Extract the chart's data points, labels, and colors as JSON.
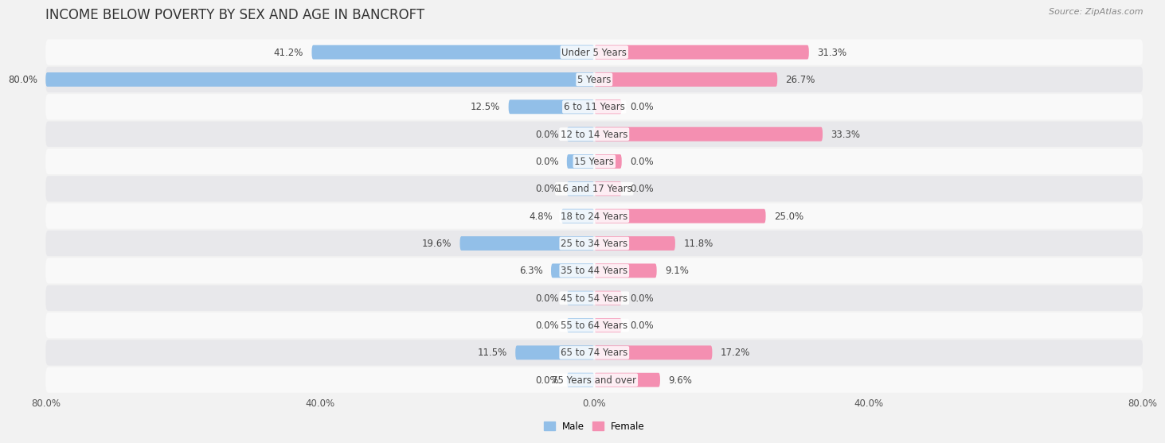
{
  "title": "INCOME BELOW POVERTY BY SEX AND AGE IN BANCROFT",
  "source": "Source: ZipAtlas.com",
  "categories": [
    "Under 5 Years",
    "5 Years",
    "6 to 11 Years",
    "12 to 14 Years",
    "15 Years",
    "16 and 17 Years",
    "18 to 24 Years",
    "25 to 34 Years",
    "35 to 44 Years",
    "45 to 54 Years",
    "55 to 64 Years",
    "65 to 74 Years",
    "75 Years and over"
  ],
  "male_values": [
    41.2,
    80.0,
    12.5,
    0.0,
    0.0,
    0.0,
    4.8,
    19.6,
    6.3,
    0.0,
    0.0,
    11.5,
    0.0
  ],
  "female_values": [
    31.3,
    26.7,
    0.0,
    33.3,
    0.0,
    0.0,
    25.0,
    11.8,
    9.1,
    0.0,
    0.0,
    17.2,
    9.6
  ],
  "male_color": "#92bfe8",
  "female_color": "#f48fb1",
  "male_label": "Male",
  "female_label": "Female",
  "axis_max": 80.0,
  "bar_height": 0.52,
  "bg_color": "#f2f2f2",
  "row_color_light": "#f9f9f9",
  "row_color_dark": "#e8e8eb",
  "title_fontsize": 12,
  "label_fontsize": 8.5,
  "value_fontsize": 8.5,
  "tick_fontsize": 8.5,
  "zero_bar_size": 4.0,
  "cat_label_color": "#444444",
  "value_label_color": "#444444"
}
